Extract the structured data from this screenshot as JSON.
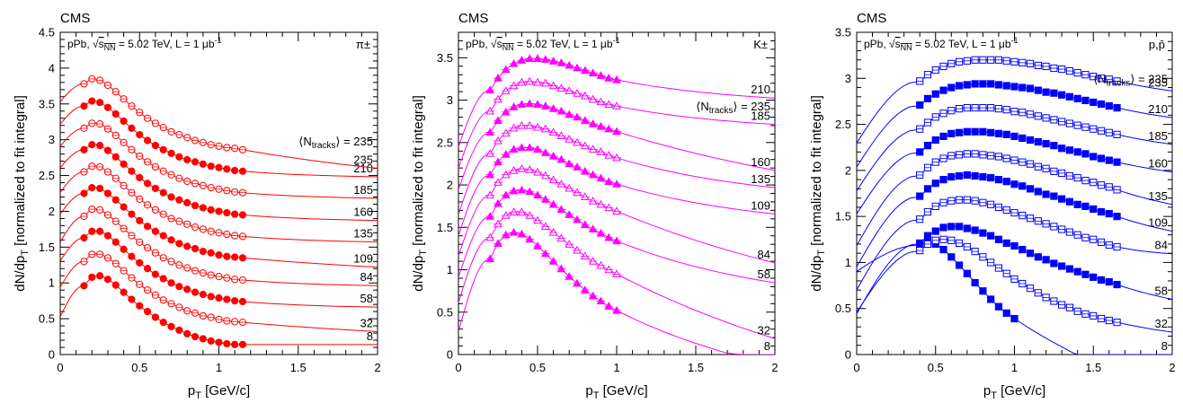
{
  "chart_data": [
    {
      "type": "line",
      "experiment": "CMS",
      "subtitle": "pPb, √sNN = 5.02 TeV, L = 1 μb-1",
      "particle": "π±",
      "xlabel": "pT [GeV/c]",
      "ylabel": "dN/dpT [normalized to fit integral]",
      "xlim": [
        0,
        2
      ],
      "ylim": [
        0,
        4.5
      ],
      "xticks": [
        "0",
        "0.5",
        "1",
        "1.5",
        "2"
      ],
      "yticks": [
        "0",
        "0.5",
        "1",
        "1.5",
        "2",
        "2.5",
        "3",
        "3.5",
        "4",
        "4.5"
      ],
      "color": "#ff0000",
      "marker_style": "circle",
      "x": [
        0.15,
        0.2,
        0.25,
        0.3,
        0.35,
        0.4,
        0.45,
        0.5,
        0.55,
        0.6,
        0.65,
        0.7,
        0.75,
        0.8,
        0.85,
        0.9,
        0.95,
        1.0,
        1.05,
        1.1,
        1.15
      ],
      "data_xmin": 0.1,
      "data_xmax": 1.2,
      "legend_label": "⟨Ntracks⟩ = 235",
      "series": [
        {
          "name": "8",
          "values": [
            0.96,
            1.08,
            1.1,
            1.05,
            0.97,
            0.87,
            0.77,
            0.68,
            0.6,
            0.52,
            0.45,
            0.39,
            0.34,
            0.29,
            0.25,
            0.22,
            0.19,
            0.17,
            0.15,
            0.14,
            0.14
          ]
        },
        {
          "name": "32",
          "values": [
            1.3,
            1.4,
            1.4,
            1.35,
            1.27,
            1.17,
            1.07,
            0.98,
            0.9,
            0.83,
            0.76,
            0.71,
            0.66,
            0.61,
            0.58,
            0.54,
            0.52,
            0.49,
            0.47,
            0.46,
            0.45
          ]
        },
        {
          "name": "58",
          "values": [
            1.63,
            1.72,
            1.72,
            1.66,
            1.57,
            1.47,
            1.37,
            1.28,
            1.2,
            1.12,
            1.06,
            1.0,
            0.95,
            0.91,
            0.87,
            0.84,
            0.81,
            0.79,
            0.77,
            0.75,
            0.74
          ]
        },
        {
          "name": "84",
          "values": [
            1.93,
            2.03,
            2.02,
            1.95,
            1.86,
            1.76,
            1.66,
            1.57,
            1.49,
            1.42,
            1.35,
            1.3,
            1.25,
            1.21,
            1.17,
            1.14,
            1.11,
            1.09,
            1.07,
            1.05,
            1.04
          ]
        },
        {
          "name": "109",
          "values": [
            2.25,
            2.33,
            2.32,
            2.25,
            2.16,
            2.06,
            1.96,
            1.87,
            1.79,
            1.72,
            1.66,
            1.6,
            1.55,
            1.51,
            1.48,
            1.44,
            1.42,
            1.39,
            1.37,
            1.36,
            1.35
          ]
        },
        {
          "name": "135",
          "values": [
            2.55,
            2.63,
            2.62,
            2.55,
            2.46,
            2.36,
            2.26,
            2.17,
            2.09,
            2.02,
            1.96,
            1.9,
            1.86,
            1.82,
            1.78,
            1.75,
            1.72,
            1.7,
            1.68,
            1.66,
            1.65
          ]
        },
        {
          "name": "160",
          "values": [
            2.86,
            2.93,
            2.92,
            2.85,
            2.76,
            2.66,
            2.56,
            2.47,
            2.39,
            2.32,
            2.26,
            2.2,
            2.16,
            2.12,
            2.08,
            2.05,
            2.02,
            2.0,
            1.98,
            1.96,
            1.95
          ]
        },
        {
          "name": "185",
          "values": [
            3.16,
            3.23,
            3.22,
            3.15,
            3.06,
            2.96,
            2.86,
            2.77,
            2.69,
            2.62,
            2.56,
            2.51,
            2.46,
            2.42,
            2.39,
            2.36,
            2.33,
            2.31,
            2.29,
            2.27,
            2.26
          ]
        },
        {
          "name": "210",
          "values": [
            3.47,
            3.54,
            3.52,
            3.45,
            3.36,
            3.26,
            3.16,
            3.07,
            2.99,
            2.92,
            2.86,
            2.81,
            2.76,
            2.72,
            2.69,
            2.66,
            2.63,
            2.61,
            2.59,
            2.57,
            2.56
          ]
        },
        {
          "name": "235",
          "values": [
            3.78,
            3.85,
            3.83,
            3.76,
            3.67,
            3.57,
            3.47,
            3.38,
            3.3,
            3.23,
            3.17,
            3.11,
            3.07,
            3.03,
            2.99,
            2.96,
            2.93,
            2.91,
            2.89,
            2.88,
            2.86
          ]
        }
      ]
    },
    {
      "type": "line",
      "experiment": "CMS",
      "subtitle": "pPb, √sNN = 5.02 TeV, L = 1 μb-1",
      "particle": "K±",
      "xlabel": "pT [GeV/c]",
      "ylabel": "dN/dpT [normalized to fit integral]",
      "xlim": [
        0,
        2
      ],
      "ylim": [
        0,
        3.8
      ],
      "xticks": [
        "0",
        "0.5",
        "1",
        "1.5",
        "2"
      ],
      "yticks": [
        "0",
        "0.5",
        "1",
        "1.5",
        "2",
        "2.5",
        "3",
        "3.5"
      ],
      "color": "#ff00ff",
      "marker_style": "triangle",
      "x": [
        0.2,
        0.25,
        0.3,
        0.35,
        0.4,
        0.45,
        0.5,
        0.55,
        0.6,
        0.65,
        0.7,
        0.75,
        0.8,
        0.85,
        0.9,
        0.95,
        1.0
      ],
      "data_xmin": 0.15,
      "data_xmax": 1.05,
      "legend_label": "⟨Ntracks⟩ = 235",
      "series": [
        {
          "name": "8",
          "values": [
            1.13,
            1.31,
            1.41,
            1.44,
            1.42,
            1.36,
            1.28,
            1.19,
            1.1,
            1.01,
            0.92,
            0.84,
            0.76,
            0.69,
            0.63,
            0.57,
            0.52
          ]
        },
        {
          "name": "32",
          "values": [
            1.38,
            1.54,
            1.64,
            1.68,
            1.68,
            1.64,
            1.58,
            1.51,
            1.44,
            1.37,
            1.3,
            1.23,
            1.16,
            1.1,
            1.05,
            1.0,
            0.95
          ]
        },
        {
          "name": "58",
          "values": [
            1.63,
            1.78,
            1.88,
            1.93,
            1.94,
            1.92,
            1.88,
            1.83,
            1.77,
            1.71,
            1.65,
            1.59,
            1.53,
            1.48,
            1.43,
            1.38,
            1.34
          ]
        },
        {
          "name": "84",
          "values": [
            1.88,
            2.03,
            2.12,
            2.17,
            2.19,
            2.18,
            2.15,
            2.11,
            2.06,
            2.01,
            1.96,
            1.91,
            1.86,
            1.81,
            1.77,
            1.73,
            1.69
          ]
        },
        {
          "name": "109",
          "values": [
            2.12,
            2.27,
            2.36,
            2.42,
            2.44,
            2.44,
            2.42,
            2.38,
            2.34,
            2.3,
            2.25,
            2.21,
            2.16,
            2.12,
            2.08,
            2.04,
            2.01
          ]
        },
        {
          "name": "135",
          "values": [
            2.37,
            2.52,
            2.61,
            2.67,
            2.7,
            2.7,
            2.68,
            2.66,
            2.62,
            2.58,
            2.54,
            2.5,
            2.46,
            2.42,
            2.39,
            2.35,
            2.32
          ]
        },
        {
          "name": "160",
          "values": [
            2.62,
            2.76,
            2.86,
            2.92,
            2.95,
            2.96,
            2.95,
            2.93,
            2.9,
            2.87,
            2.83,
            2.8,
            2.76,
            2.72,
            2.69,
            2.66,
            2.63
          ]
        },
        {
          "name": "185",
          "values": [
            2.87,
            3.01,
            3.11,
            3.17,
            3.21,
            3.22,
            3.21,
            3.2,
            3.17,
            3.14,
            3.11,
            3.08,
            3.05,
            3.01,
            2.98,
            2.95,
            2.93
          ]
        },
        {
          "name": "210",
          "values": [
            3.12,
            3.26,
            3.36,
            3.43,
            3.47,
            3.49,
            3.49,
            3.48,
            3.46,
            3.44,
            3.41,
            3.38,
            3.35,
            3.32,
            3.29,
            3.26,
            3.24
          ]
        }
      ]
    },
    {
      "type": "line",
      "experiment": "CMS",
      "subtitle": "pPb, √sNN = 5.02 TeV, L = 1 μb-1",
      "particle": "p,p̄",
      "xlabel": "pT [GeV/c]",
      "ylabel": "dN/dpT [normalized to fit integral]",
      "xlim": [
        0,
        2
      ],
      "ylim": [
        0,
        3.5
      ],
      "xticks": [
        "0",
        "0.5",
        "1",
        "1.5",
        "2"
      ],
      "yticks": [
        "0",
        "0.5",
        "1",
        "1.5",
        "2",
        "2.5",
        "3",
        "3.5"
      ],
      "color": "#0000ff",
      "marker_style": "square",
      "x": [
        0.4,
        0.45,
        0.5,
        0.55,
        0.6,
        0.65,
        0.7,
        0.75,
        0.8,
        0.85,
        0.9,
        0.95,
        1.0,
        1.05,
        1.1,
        1.15,
        1.2,
        1.25,
        1.3,
        1.35,
        1.4,
        1.45,
        1.5,
        1.55,
        1.6,
        1.65
      ],
      "data_xmin": 0.35,
      "data_xmax": 1.7,
      "legend_label": "⟨Ntracks⟩ = 235",
      "series": [
        {
          "name": "8",
          "values": [
            1.19,
            1.22,
            1.2,
            1.14,
            1.06,
            0.97,
            0.88,
            0.78,
            0.69,
            0.6,
            0.52,
            0.45,
            0.39,
            null,
            null,
            null,
            null,
            null,
            null,
            null,
            null,
            null,
            null,
            null,
            null,
            null
          ]
        },
        {
          "name": "32",
          "values": [
            1.13,
            1.2,
            1.24,
            1.25,
            1.24,
            1.21,
            1.17,
            1.12,
            1.06,
            1.0,
            0.94,
            0.88,
            0.82,
            0.77,
            0.72,
            0.67,
            0.62,
            0.58,
            0.54,
            0.51,
            0.47,
            0.44,
            0.42,
            0.39,
            0.37,
            0.35
          ]
        },
        {
          "name": "58",
          "values": [
            1.21,
            1.29,
            1.34,
            1.38,
            1.39,
            1.39,
            1.37,
            1.35,
            1.32,
            1.29,
            1.25,
            1.21,
            1.18,
            1.14,
            1.1,
            1.06,
            1.03,
            0.99,
            0.96,
            0.93,
            0.9,
            0.87,
            0.84,
            0.81,
            0.79,
            0.76
          ]
        },
        {
          "name": "84",
          "values": [
            1.47,
            1.55,
            1.61,
            1.65,
            1.67,
            1.68,
            1.68,
            1.67,
            1.65,
            1.63,
            1.6,
            1.57,
            1.54,
            1.51,
            1.48,
            1.45,
            1.42,
            1.39,
            1.36,
            1.33,
            1.3,
            1.27,
            1.25,
            1.22,
            1.19,
            1.17
          ]
        },
        {
          "name": "109",
          "values": [
            1.72,
            1.8,
            1.86,
            1.9,
            1.93,
            1.94,
            1.95,
            1.94,
            1.93,
            1.92,
            1.9,
            1.88,
            1.85,
            1.83,
            1.8,
            1.77,
            1.74,
            1.72,
            1.69,
            1.66,
            1.63,
            1.61,
            1.58,
            1.55,
            1.53,
            1.5
          ]
        },
        {
          "name": "135",
          "values": [
            1.95,
            2.03,
            2.09,
            2.13,
            2.16,
            2.17,
            2.18,
            2.18,
            2.17,
            2.16,
            2.15,
            2.13,
            2.11,
            2.09,
            2.07,
            2.04,
            2.02,
            1.99,
            1.97,
            1.94,
            1.92,
            1.89,
            1.87,
            1.84,
            1.82,
            1.79
          ]
        },
        {
          "name": "160",
          "values": [
            2.2,
            2.27,
            2.33,
            2.37,
            2.4,
            2.41,
            2.42,
            2.42,
            2.42,
            2.41,
            2.4,
            2.39,
            2.37,
            2.35,
            2.33,
            2.31,
            2.29,
            2.27,
            2.24,
            2.22,
            2.2,
            2.18,
            2.15,
            2.13,
            2.11,
            2.09
          ]
        },
        {
          "name": "185",
          "values": [
            2.45,
            2.52,
            2.58,
            2.62,
            2.65,
            2.67,
            2.68,
            2.68,
            2.68,
            2.68,
            2.67,
            2.66,
            2.64,
            2.63,
            2.61,
            2.59,
            2.57,
            2.55,
            2.53,
            2.51,
            2.49,
            2.47,
            2.45,
            2.43,
            2.41,
            2.39
          ]
        },
        {
          "name": "210",
          "values": [
            2.71,
            2.78,
            2.83,
            2.87,
            2.9,
            2.92,
            2.93,
            2.94,
            2.94,
            2.94,
            2.93,
            2.92,
            2.91,
            2.9,
            2.89,
            2.87,
            2.85,
            2.84,
            2.82,
            2.8,
            2.78,
            2.76,
            2.74,
            2.72,
            2.7,
            2.68
          ]
        },
        {
          "name": "235",
          "values": [
            2.97,
            3.04,
            3.09,
            3.13,
            3.16,
            3.18,
            3.19,
            3.2,
            3.2,
            3.2,
            3.2,
            3.19,
            3.18,
            3.17,
            3.16,
            3.14,
            3.13,
            3.11,
            3.1,
            3.08,
            3.06,
            3.04,
            3.02,
            3.0,
            2.99,
            2.97
          ]
        }
      ]
    }
  ]
}
